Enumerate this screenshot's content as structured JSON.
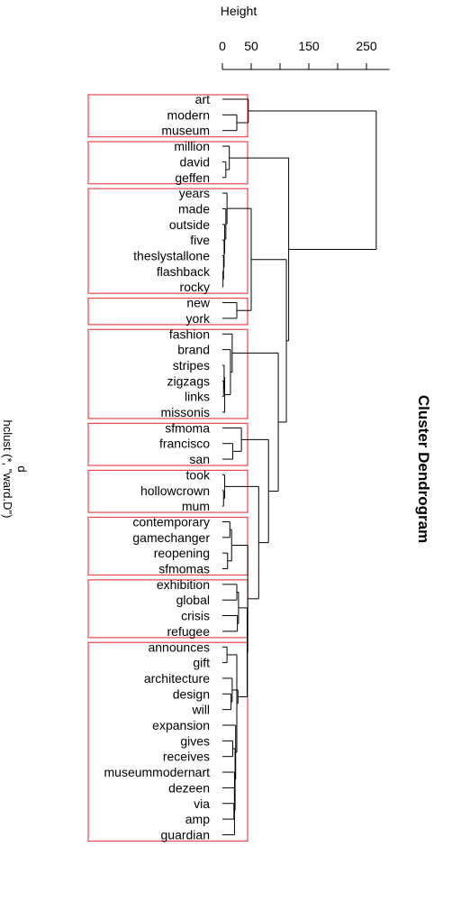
{
  "chart_data": {
    "type": "dendrogram",
    "title": "Cluster Dendrogram",
    "axis_title": "Height",
    "subtitle_line1": "d",
    "subtitle_line2": "hclust (*, \"ward.D\")",
    "ticks": [
      0,
      50,
      150,
      250
    ],
    "minor_ticks": [
      100,
      200
    ],
    "axis_max": 290,
    "leaves": [
      "art",
      "modern",
      "museum",
      "million",
      "david",
      "geffen",
      "years",
      "made",
      "outside",
      "five",
      "theslystallone",
      "flashback",
      "rocky",
      "new",
      "york",
      "fashion",
      "brand",
      "stripes",
      "zigzags",
      "links",
      "missonis",
      "sfmoma",
      "francisco",
      "san",
      "took",
      "hollowcrown",
      "mum",
      "contemporary",
      "gamechanger",
      "reopening",
      "sfmomas",
      "exhibition",
      "global",
      "crisis",
      "refugee",
      "announces",
      "gift",
      "architecture",
      "design",
      "will",
      "expansion",
      "gives",
      "receives",
      "museummodernart",
      "dezeen",
      "via",
      "amp",
      "guardian"
    ],
    "merges": [
      [
        -2,
        -3,
        25
      ],
      [
        -1,
        1,
        45
      ],
      [
        -5,
        -6,
        6
      ],
      [
        -4,
        3,
        12
      ],
      [
        -12,
        -13,
        1
      ],
      [
        -11,
        5,
        2
      ],
      [
        -10,
        6,
        3
      ],
      [
        -9,
        7,
        4
      ],
      [
        -8,
        8,
        6
      ],
      [
        -7,
        9,
        8
      ],
      [
        -14,
        -15,
        25
      ],
      [
        10,
        11,
        50
      ],
      [
        -19,
        -20,
        2
      ],
      [
        -18,
        13,
        3
      ],
      [
        -21,
        14,
        4
      ],
      [
        -17,
        15,
        14
      ],
      [
        -16,
        16,
        17
      ],
      [
        -23,
        -24,
        18
      ],
      [
        -22,
        18,
        33
      ],
      [
        -26,
        -27,
        2
      ],
      [
        -25,
        20,
        4
      ],
      [
        -28,
        -29,
        13
      ],
      [
        -30,
        -31,
        9
      ],
      [
        22,
        23,
        16
      ],
      [
        -32,
        -33,
        25
      ],
      [
        -34,
        -35,
        26
      ],
      [
        25,
        26,
        28
      ],
      [
        -36,
        -37,
        8
      ],
      [
        -39,
        -40,
        15
      ],
      [
        -38,
        29,
        17
      ],
      [
        -42,
        -43,
        18
      ],
      [
        -46,
        -47,
        20
      ],
      [
        -45,
        32,
        21
      ],
      [
        -44,
        33,
        21
      ],
      [
        -48,
        34,
        21
      ],
      [
        31,
        35,
        22
      ],
      [
        -41,
        36,
        23
      ],
      [
        28,
        37,
        25
      ],
      [
        30,
        38,
        27
      ],
      [
        27,
        39,
        43
      ],
      [
        24,
        40,
        44
      ],
      [
        21,
        41,
        63
      ],
      [
        19,
        42,
        80
      ],
      [
        17,
        43,
        97
      ],
      [
        12,
        44,
        111
      ],
      [
        4,
        45,
        115
      ],
      [
        2,
        46,
        267
      ]
    ],
    "clusters": [
      [
        0,
        2
      ],
      [
        3,
        5
      ],
      [
        6,
        12
      ],
      [
        13,
        14
      ],
      [
        15,
        20
      ],
      [
        21,
        23
      ],
      [
        24,
        26
      ],
      [
        27,
        30
      ],
      [
        31,
        34
      ],
      [
        35,
        47
      ]
    ]
  }
}
